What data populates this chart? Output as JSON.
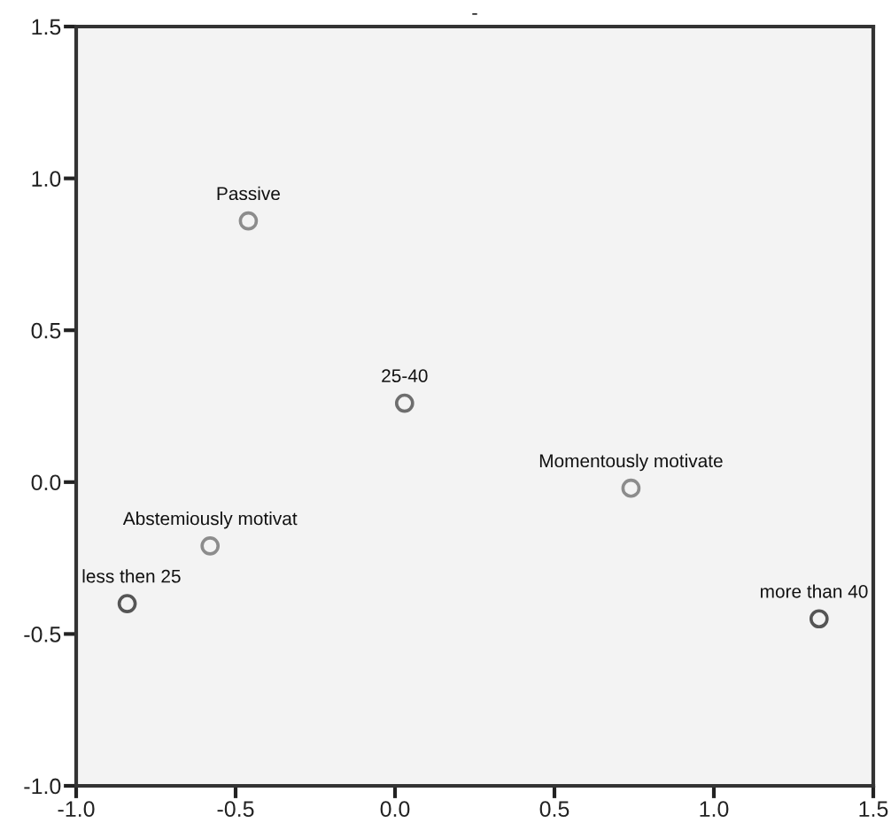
{
  "chart_data": {
    "type": "scatter",
    "title": "-",
    "x": [
      -0.46,
      0.03,
      0.74,
      -0.58,
      -0.84,
      1.33
    ],
    "values": [
      0.86,
      0.26,
      -0.02,
      -0.21,
      -0.4,
      -0.45
    ],
    "colors": [
      "#8c8c8c",
      "#6e6e6e",
      "#8c8c8c",
      "#8c8c8c",
      "#555555",
      "#555555"
    ],
    "marker": "circle",
    "xlim": [
      -1.0,
      1.5
    ],
    "xticks": [
      {
        "value": -1.0,
        "label": "-1.0"
      },
      {
        "value": -0.5,
        "label": "-0.5"
      },
      {
        "value": 0.0,
        "label": "0.0"
      },
      {
        "value": 0.5,
        "label": "0.5"
      },
      {
        "value": 1.0,
        "label": "1.0"
      },
      {
        "value": 1.5,
        "label": "1.5"
      }
    ],
    "ylim": [
      -1.0,
      1.5
    ],
    "yticks": [
      {
        "value": -1.0,
        "label": "-1.0"
      },
      {
        "value": -0.5,
        "label": "-0.5"
      },
      {
        "value": 0.0,
        "label": "0.0"
      },
      {
        "value": 0.5,
        "label": "0.5"
      },
      {
        "value": 1.0,
        "label": "1.0"
      },
      {
        "value": 1.5,
        "label": "1.5"
      }
    ],
    "grid": false,
    "annotations": [
      {
        "text": "Passive",
        "x": -0.46,
        "y": 0.86
      },
      {
        "text": "25-40",
        "x": 0.03,
        "y": 0.26
      },
      {
        "text": "Momentously motivate",
        "x": 0.74,
        "y": -0.02
      },
      {
        "text": "Abstemiously motivat",
        "x": -0.58,
        "y": -0.21
      },
      {
        "text": "less then 25",
        "x": -0.84,
        "y": -0.4
      },
      {
        "text": "more than 40",
        "x": 1.33,
        "y": -0.45
      }
    ]
  }
}
